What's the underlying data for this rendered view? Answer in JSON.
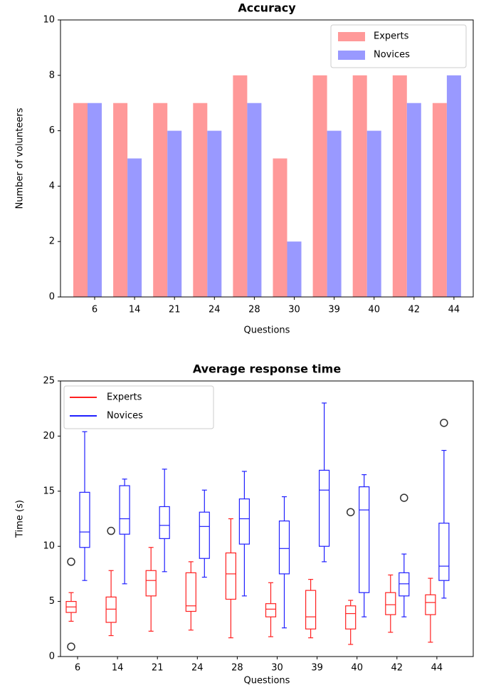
{
  "chart_data": [
    {
      "type": "bar",
      "title": "Accuracy",
      "x_label": "Questions",
      "y_label": "Number of volunteers",
      "categories": [
        "6",
        "14",
        "21",
        "24",
        "28",
        "30",
        "39",
        "40",
        "42",
        "44"
      ],
      "series": [
        {
          "name": "Experts",
          "color": "#ff9999",
          "values": [
            7,
            7,
            7,
            7,
            8,
            5,
            8,
            8,
            8,
            7
          ]
        },
        {
          "name": "Novices",
          "color": "#9999ff",
          "values": [
            7,
            5,
            6,
            6,
            7,
            2,
            6,
            6,
            7,
            8
          ]
        }
      ],
      "ylim": [
        0,
        10
      ],
      "yticks": [
        0,
        2,
        4,
        6,
        8,
        10
      ],
      "legend": "upper right"
    },
    {
      "type": "box",
      "title": "Average response time",
      "x_label": "Questions",
      "y_label": "Time (s)",
      "categories": [
        "6",
        "14",
        "21",
        "24",
        "28",
        "30",
        "39",
        "40",
        "42",
        "44"
      ],
      "series": [
        {
          "name": "Experts",
          "color": "#ff2020",
          "boxes": [
            {
              "whislo": 3.2,
              "q1": 4.0,
              "med": 4.5,
              "q3": 5.0,
              "whishi": 5.8,
              "fliers": [
                8.6,
                0.9
              ]
            },
            {
              "whislo": 1.9,
              "q1": 3.1,
              "med": 4.3,
              "q3": 5.4,
              "whishi": 7.8,
              "fliers": [
                11.4
              ]
            },
            {
              "whislo": 2.3,
              "q1": 5.5,
              "med": 6.9,
              "q3": 7.8,
              "whishi": 9.9
            },
            {
              "whislo": 2.4,
              "q1": 4.1,
              "med": 4.6,
              "q3": 7.6,
              "whishi": 8.6
            },
            {
              "whislo": 1.7,
              "q1": 5.2,
              "med": 7.5,
              "q3": 9.4,
              "whishi": 12.5
            },
            {
              "whislo": 1.8,
              "q1": 3.6,
              "med": 4.3,
              "q3": 4.8,
              "whishi": 6.7
            },
            {
              "whislo": 1.7,
              "q1": 2.5,
              "med": 3.6,
              "q3": 6.0,
              "whishi": 7.0
            },
            {
              "whislo": 1.1,
              "q1": 2.5,
              "med": 3.9,
              "q3": 4.6,
              "whishi": 5.1,
              "fliers": [
                13.1
              ]
            },
            {
              "whislo": 2.2,
              "q1": 3.8,
              "med": 4.7,
              "q3": 5.8,
              "whishi": 7.4
            },
            {
              "whislo": 1.3,
              "q1": 3.8,
              "med": 4.9,
              "q3": 5.6,
              "whishi": 7.1
            }
          ]
        },
        {
          "name": "Novices",
          "color": "#2020ff",
          "boxes": [
            {
              "whislo": 6.9,
              "q1": 9.9,
              "med": 11.3,
              "q3": 14.9,
              "whishi": 20.4
            },
            {
              "whislo": 6.6,
              "q1": 11.1,
              "med": 12.5,
              "q3": 15.5,
              "whishi": 16.1
            },
            {
              "whislo": 7.7,
              "q1": 10.7,
              "med": 11.9,
              "q3": 13.6,
              "whishi": 17.0
            },
            {
              "whislo": 7.2,
              "q1": 8.9,
              "med": 11.8,
              "q3": 13.1,
              "whishi": 15.1
            },
            {
              "whislo": 5.5,
              "q1": 10.2,
              "med": 12.5,
              "q3": 14.3,
              "whishi": 16.8
            },
            {
              "whislo": 2.6,
              "q1": 7.5,
              "med": 9.8,
              "q3": 12.3,
              "whishi": 14.5
            },
            {
              "whislo": 8.6,
              "q1": 10.0,
              "med": 15.1,
              "q3": 16.9,
              "whishi": 23.0
            },
            {
              "whislo": 3.6,
              "q1": 5.8,
              "med": 13.3,
              "q3": 15.4,
              "whishi": 16.5
            },
            {
              "whislo": 3.6,
              "q1": 5.5,
              "med": 6.6,
              "q3": 7.6,
              "whishi": 9.3,
              "fliers": [
                14.4
              ]
            },
            {
              "whislo": 5.3,
              "q1": 6.9,
              "med": 8.2,
              "q3": 12.1,
              "whishi": 18.7,
              "fliers": [
                21.2
              ]
            }
          ]
        }
      ],
      "ylim": [
        0,
        25
      ],
      "yticks": [
        0,
        5,
        10,
        15,
        20,
        25
      ],
      "legend": "upper left"
    }
  ]
}
